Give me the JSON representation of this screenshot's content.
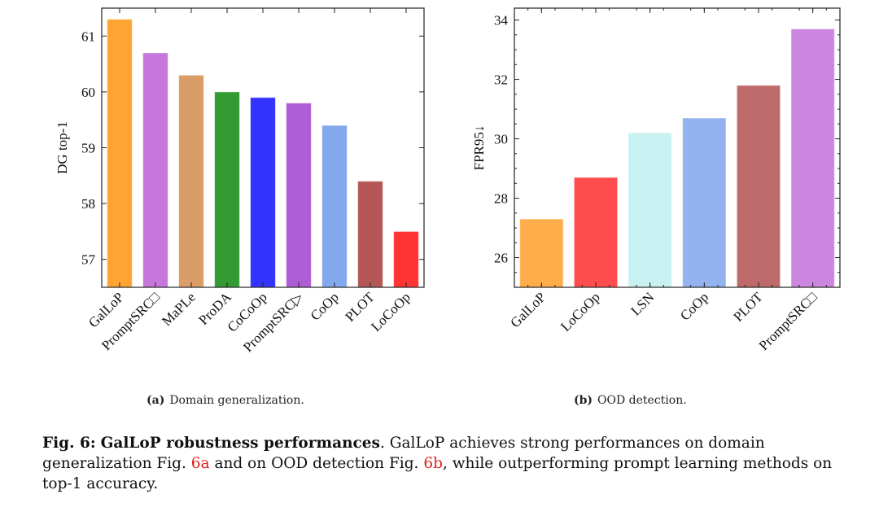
{
  "chart_data": [
    {
      "type": "bar",
      "id": "a",
      "subcaption_label": "(a)",
      "subcaption_text": "Domain generalization.",
      "title": "",
      "xlabel": "",
      "ylabel": "DG top-1",
      "ylim": [
        56.5,
        61.5
      ],
      "yticks": [
        57,
        58,
        59,
        60,
        61
      ],
      "grid": false,
      "categories": [
        "GalLoP",
        "PromptSRC□",
        "MaPLe",
        "ProDA",
        "CoCoOp",
        "PromptSRC▷",
        "CoOp",
        "PLOT",
        "LoCoOp"
      ],
      "values": [
        61.3,
        60.7,
        60.3,
        60.0,
        59.9,
        59.8,
        59.4,
        58.4,
        57.5
      ],
      "colors": [
        "#ffa333",
        "#c777dc",
        "#d99d68",
        "#349a34",
        "#3333ff",
        "#ad5ed7",
        "#83a8ee",
        "#b55656",
        "#ff3434"
      ]
    },
    {
      "type": "bar",
      "id": "b",
      "subcaption_label": "(b)",
      "subcaption_text": "OOD detection.",
      "title": "",
      "xlabel": "",
      "ylabel": "FPR95↓",
      "ylim": [
        25.0,
        34.4
      ],
      "yticks": [
        26,
        28,
        30,
        32,
        34
      ],
      "grid": false,
      "categories": [
        "GalLoP",
        "LoCoOp",
        "LSN",
        "CoOp",
        "PLOT",
        "PromptSRC□"
      ],
      "values": [
        27.3,
        28.7,
        30.2,
        30.7,
        31.8,
        33.7
      ],
      "colors": [
        "#ffac4b",
        "#ff4c4c",
        "#c8f1f1",
        "#93b3f0",
        "#bf6a6a",
        "#cd86df"
      ]
    }
  ],
  "caption": {
    "fig_label": "Fig. 6:",
    "title": "GalLoP robustness performances",
    "text_1": ". GalLoP achieves strong performances on domain generalization Fig. ",
    "ref_a": "6a",
    "text_2": " and on OOD detection Fig. ",
    "ref_b": "6b",
    "text_3": ", while outperforming prompt learning methods on top-1 accuracy."
  }
}
